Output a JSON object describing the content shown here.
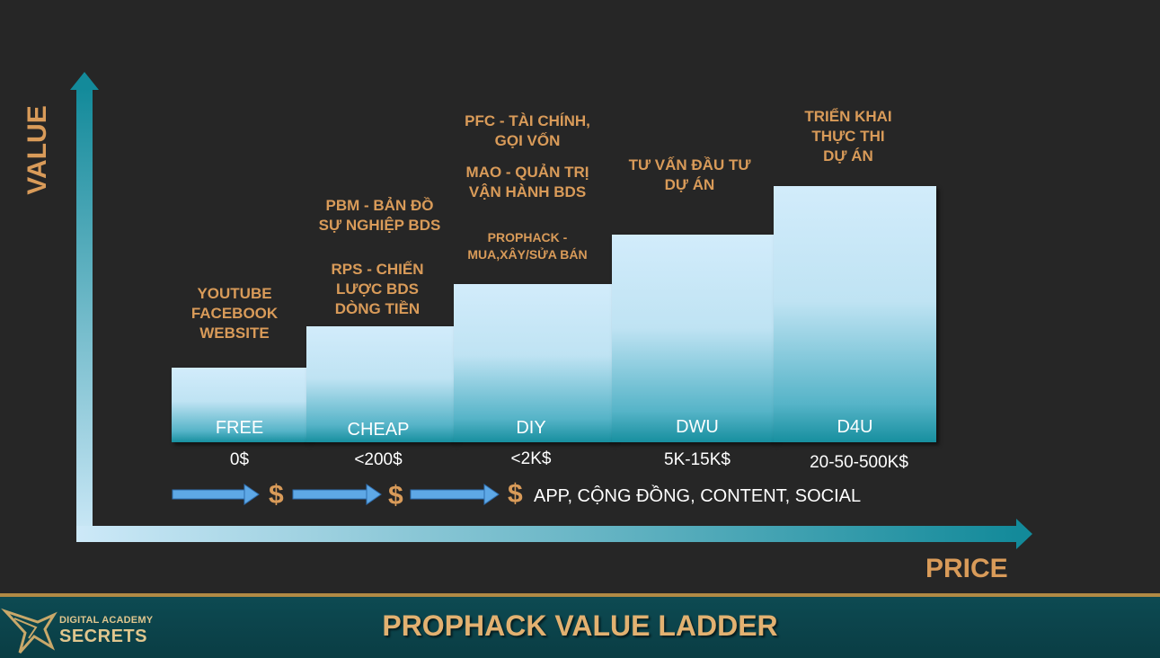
{
  "axes": {
    "y_label": "VALUE",
    "x_label": "PRICE"
  },
  "steps": [
    {
      "label": "FREE",
      "price": "0$",
      "desc": [
        "YOUTUBE",
        "FACEBOOK",
        "WEBSITE"
      ]
    },
    {
      "label": "CHEAP",
      "price": "<200$",
      "desc_top": [
        "PBM - BẢN ĐỒ",
        "SỰ NGHIỆP BDS"
      ],
      "desc_bottom": [
        "RPS - CHIẾN",
        "LƯỢC BDS",
        "DÒNG TIỀN"
      ]
    },
    {
      "label": "DIY",
      "price": "<2K$",
      "desc_top": [
        "PFC - TÀI CHÍNH,",
        "GỌI VỐN"
      ],
      "desc_mid": [
        "MAO - QUẢN TRỊ",
        "VẬN HÀNH BDS"
      ],
      "desc_bottom": [
        "PROPHACK -",
        "MUA,XÂY/SỬA BÁN"
      ]
    },
    {
      "label": "DWU",
      "price": "5K-15K$",
      "desc": [
        "TƯ VẤN ĐẦU TƯ",
        "DỰ ÁN"
      ]
    },
    {
      "label": "D4U",
      "price": "20-50-500K$",
      "desc": [
        "TRIỂN KHAI",
        "THỰC THI",
        "DỰ ÁN"
      ]
    }
  ],
  "flow": {
    "currency_symbol": "$",
    "tail_text": "APP, CỘNG ĐỒNG, CONTENT, SOCIAL"
  },
  "footer": {
    "title": "PROPHACK VALUE LADDER",
    "logo_line1": "DIGITAL ACADEMY",
    "logo_line2": "SECRETS"
  },
  "colors": {
    "background": "#262626",
    "accent_text": "#d99b59",
    "bar_top": "#d2ecfb",
    "bar_bottom": "#178f9f",
    "footer_bg": "#0a3d44",
    "footer_border": "#b08a45"
  }
}
